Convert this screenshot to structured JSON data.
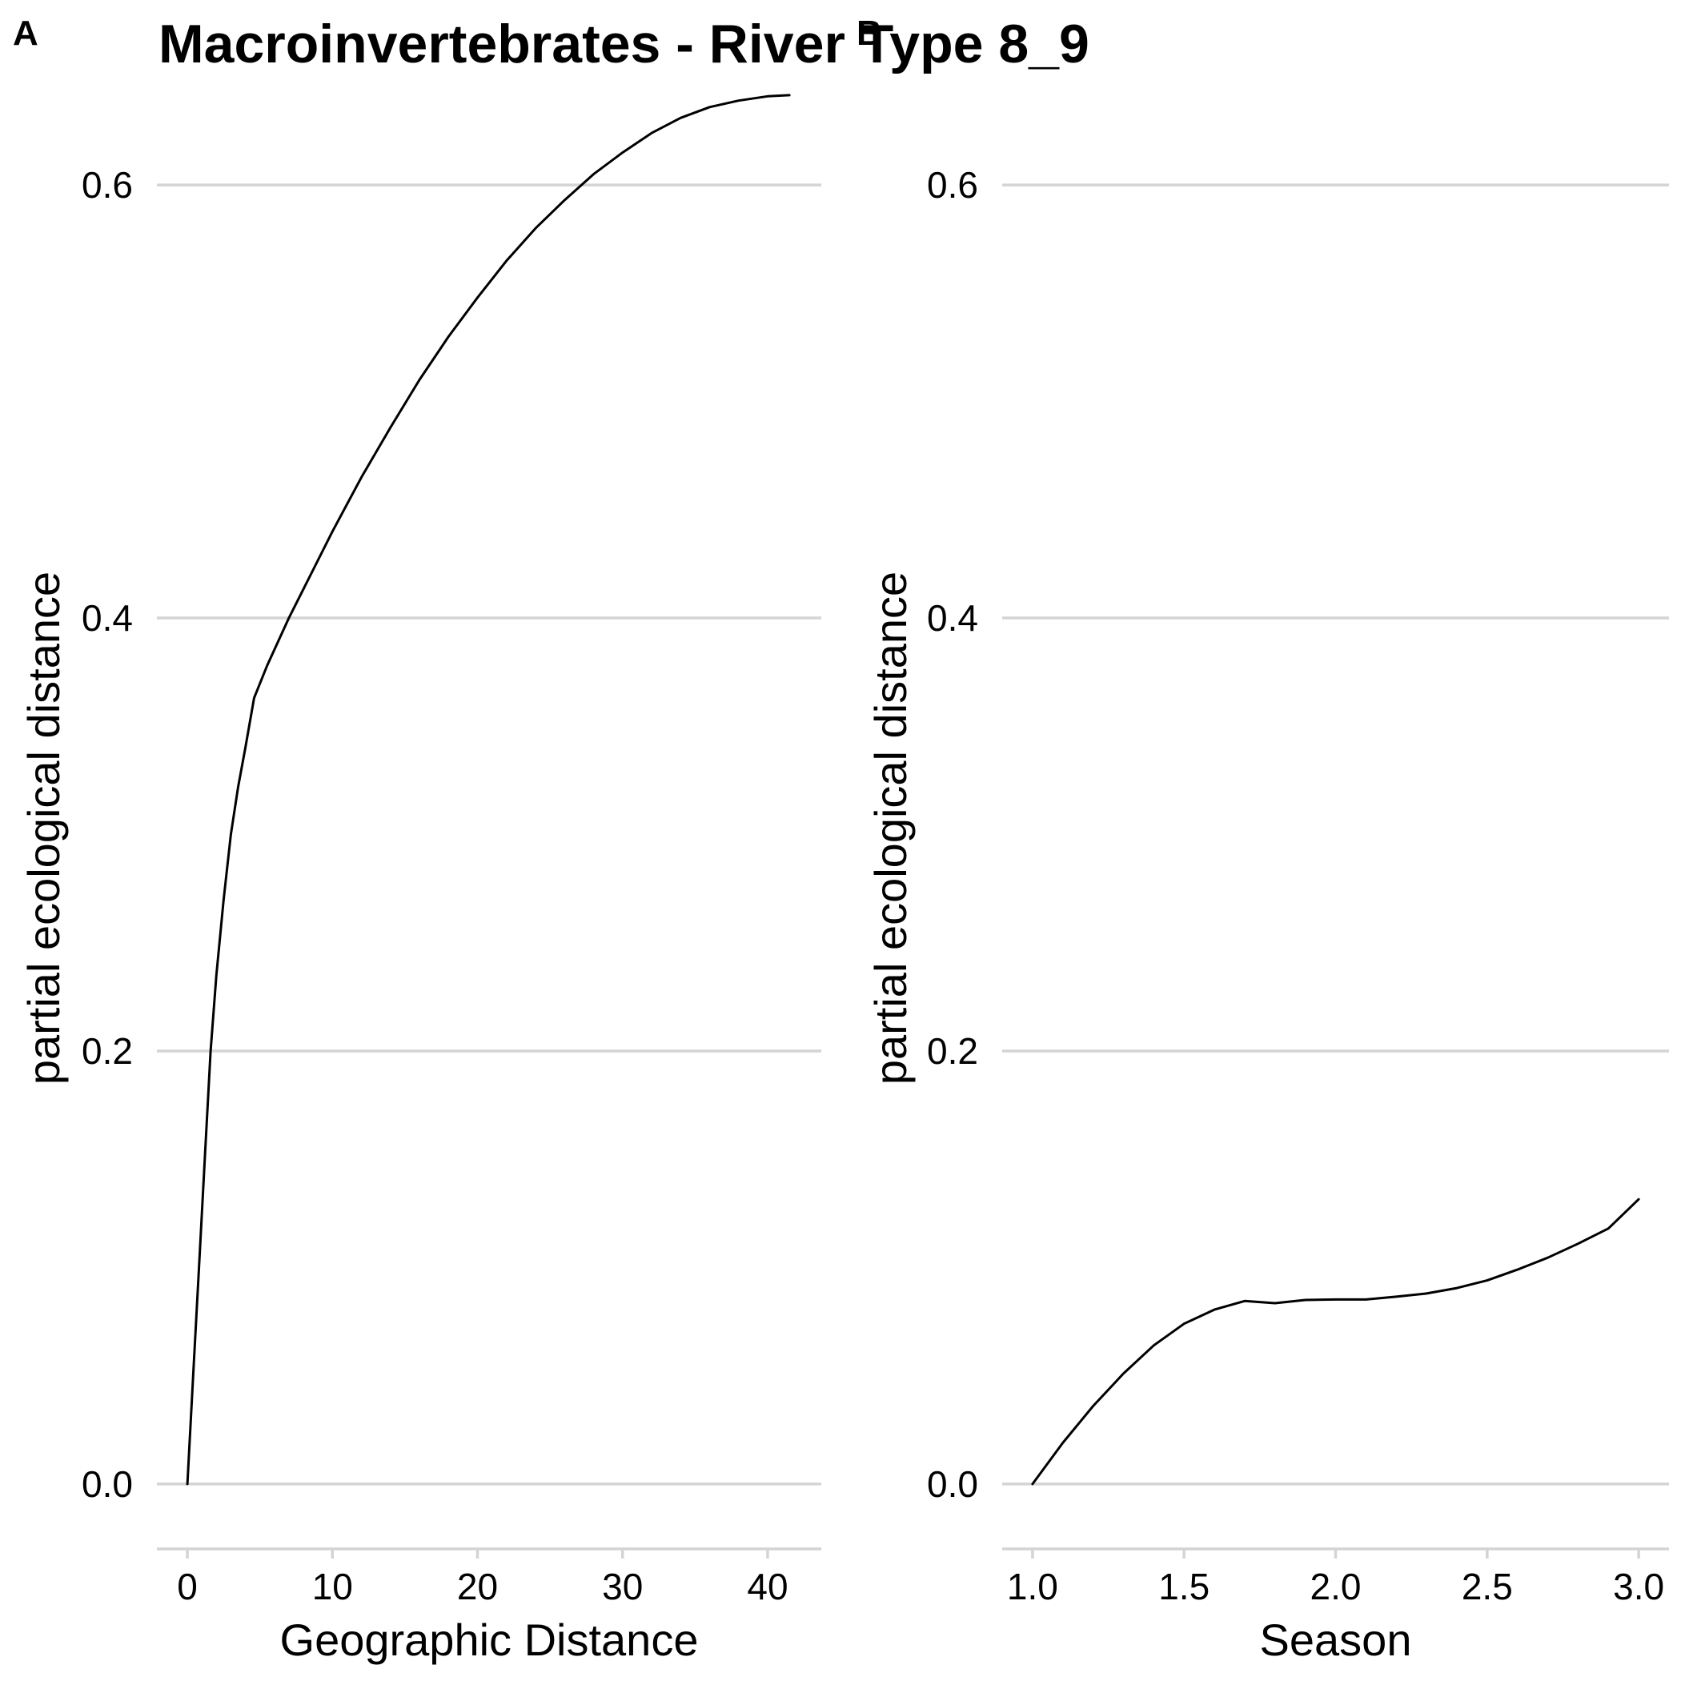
{
  "figure": {
    "title": "Macroinvertebrates - River Type 8_9"
  },
  "chart_data": [
    {
      "type": "line",
      "panel_tag": "A",
      "xlabel": "Geographic Distance",
      "ylabel": "partial ecological distance",
      "xlim": [
        -2.1,
        43.7
      ],
      "ylim": [
        -0.03,
        0.63
      ],
      "x_ticks": [
        0,
        10,
        20,
        30,
        40
      ],
      "x_tick_labels": [
        "0",
        "10",
        "20",
        "30",
        "40"
      ],
      "y_ticks": [
        0,
        0.2,
        0.4,
        0.6
      ],
      "y_tick_labels": [
        "0.0",
        "0.2",
        "0.4",
        "0.6"
      ],
      "grid": "horizontal major",
      "series": [
        {
          "x": [
            0,
            0.4,
            0.8,
            1.2,
            1.6,
            2.0,
            2.5,
            3.0,
            3.5,
            4.0,
            4.6,
            5.5,
            7.0,
            8.5,
            10.0,
            12.0,
            14.0,
            16.0,
            18.0,
            20.0,
            22.0,
            24.0,
            26.0,
            28.0,
            30.0,
            32.0,
            34.0,
            36.0,
            38.0,
            40.0,
            41.5
          ],
          "y": [
            0,
            0.05,
            0.1,
            0.15,
            0.2,
            0.235,
            0.27,
            0.3,
            0.322,
            0.34,
            0.363,
            0.378,
            0.4,
            0.42,
            0.44,
            0.465,
            0.488,
            0.51,
            0.53,
            0.548,
            0.565,
            0.58,
            0.593,
            0.605,
            0.615,
            0.624,
            0.631,
            0.636,
            0.639,
            0.641,
            0.6415
          ]
        }
      ]
    },
    {
      "type": "line",
      "panel_tag": "B",
      "xlabel": "Season",
      "ylabel": "partial ecological distance",
      "xlim": [
        0.9,
        3.1
      ],
      "ylim": [
        -0.03,
        0.63
      ],
      "x_ticks": [
        1.0,
        1.5,
        2.0,
        2.5,
        3.0
      ],
      "x_tick_labels": [
        "1.0",
        "1.5",
        "2.0",
        "2.5",
        "3.0"
      ],
      "y_ticks": [
        0,
        0.2,
        0.4,
        0.6
      ],
      "y_tick_labels": [
        "0.0",
        "0.2",
        "0.4",
        "0.6"
      ],
      "grid": "horizontal major",
      "series": [
        {
          "x": [
            1.0,
            1.1,
            1.2,
            1.3,
            1.4,
            1.5,
            1.6,
            1.7,
            1.8,
            1.9,
            2.0,
            2.1,
            2.2,
            2.3,
            2.4,
            2.5,
            2.6,
            2.7,
            2.8,
            2.9,
            3.0
          ],
          "y": [
            0,
            0.019,
            0.036,
            0.051,
            0.064,
            0.074,
            0.0805,
            0.0845,
            0.0835,
            0.085,
            0.0852,
            0.0852,
            0.0865,
            0.088,
            0.0905,
            0.094,
            0.099,
            0.1045,
            0.111,
            0.118,
            0.1315
          ]
        }
      ]
    }
  ]
}
